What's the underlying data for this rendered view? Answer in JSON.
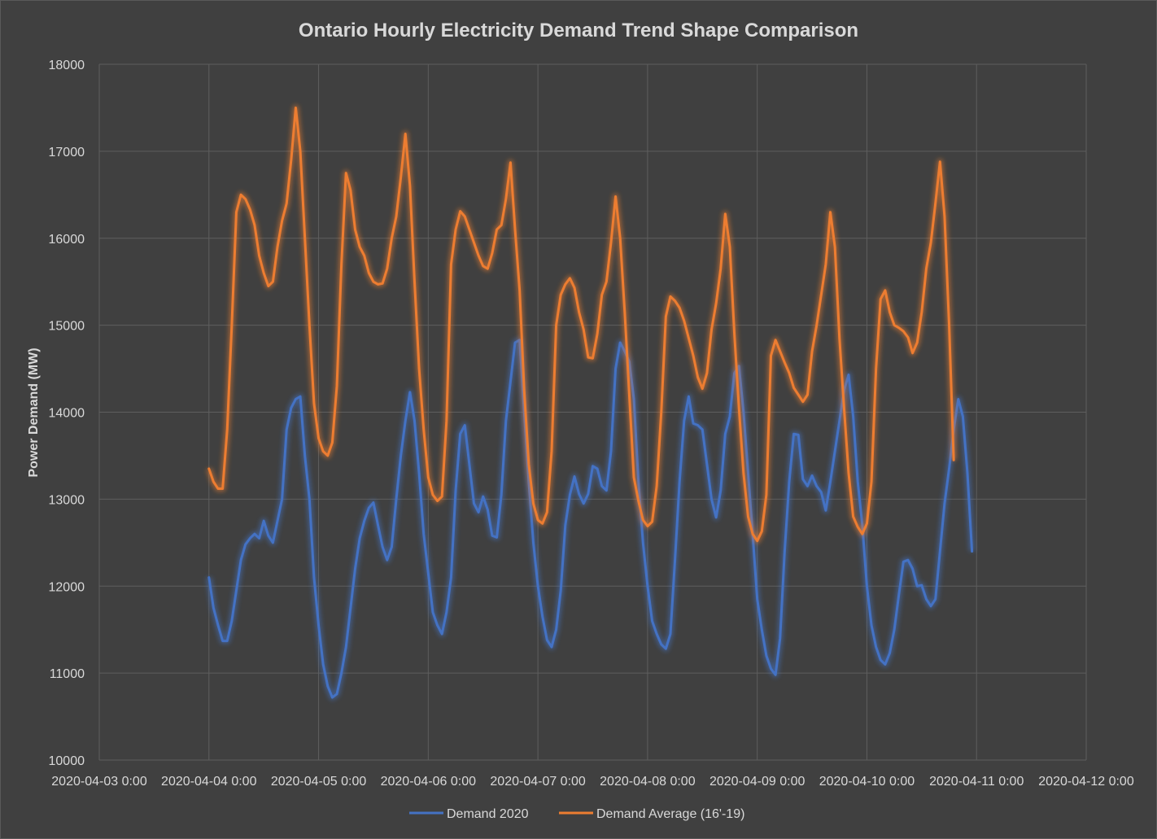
{
  "chart_data": {
    "type": "line",
    "title": "Ontario Hourly Electricity Demand Trend Shape Comparison",
    "xlabel": "",
    "ylabel": "Power Demand (MW)",
    "ylim": [
      10000,
      18000
    ],
    "yticks": [
      10000,
      11000,
      12000,
      13000,
      14000,
      15000,
      16000,
      17000,
      18000
    ],
    "xlim": [
      "2020-04-03 0:00",
      "2020-04-12 0:00"
    ],
    "xtick_labels": [
      "2020-04-03 0:00",
      "2020-04-04 0:00",
      "2020-04-05 0:00",
      "2020-04-06 0:00",
      "2020-04-07 0:00",
      "2020-04-08 0:00",
      "2020-04-09 0:00",
      "2020-04-10 0:00",
      "2020-04-11 0:00",
      "2020-04-12 0:00"
    ],
    "x_start": "2020-04-04 0:00",
    "x_interval": "1 hour",
    "grid": true,
    "legend_position": "bottom",
    "series": [
      {
        "name": "Demand 2020",
        "color": "#4472c4",
        "values": [
          12100,
          11750,
          11550,
          11370,
          11370,
          11600,
          11950,
          12300,
          12480,
          12550,
          12600,
          12550,
          12750,
          12580,
          12500,
          12750,
          13000,
          13800,
          14050,
          14150,
          14180,
          13500,
          13000,
          12100,
          11550,
          11100,
          10850,
          10720,
          10760,
          11000,
          11300,
          11750,
          12200,
          12550,
          12750,
          12900,
          12960,
          12700,
          12450,
          12300,
          12450,
          13000,
          13500,
          13900,
          14230,
          13900,
          13300,
          12600,
          12150,
          11700,
          11550,
          11450,
          11700,
          12100,
          13100,
          13750,
          13850,
          13400,
          12950,
          12850,
          13030,
          12880,
          12580,
          12560,
          13050,
          13900,
          14350,
          14800,
          14830,
          14000,
          13200,
          12500,
          12000,
          11650,
          11380,
          11300,
          11500,
          11950,
          12700,
          13050,
          13260,
          13060,
          12950,
          13060,
          13380,
          13350,
          13150,
          13100,
          13550,
          14500,
          14800,
          14700,
          14580,
          14150,
          13200,
          12500,
          12000,
          11600,
          11450,
          11330,
          11280,
          11450,
          12300,
          13200,
          13900,
          14180,
          13870,
          13850,
          13800,
          13400,
          13000,
          12790,
          13100,
          13750,
          13950,
          14450,
          14530,
          14000,
          13300,
          12600,
          11850,
          11500,
          11200,
          11050,
          10980,
          11400,
          12400,
          13200,
          13750,
          13740,
          13230,
          13150,
          13270,
          13150,
          13080,
          12870,
          13200,
          13550,
          13900,
          14250,
          14430,
          13950,
          13200,
          12700,
          12000,
          11550,
          11300,
          11150,
          11100,
          11230,
          11500,
          11900,
          12280,
          12300,
          12200,
          12000,
          12010,
          11850,
          11770,
          11850,
          12400,
          12950,
          13350,
          13800,
          14150,
          13950,
          13300,
          12400
        ]
      },
      {
        "name": "Demand Average (16'-19)",
        "color": "#ed7d31",
        "values": [
          13350,
          13200,
          13120,
          13120,
          13800,
          15000,
          16300,
          16500,
          16450,
          16330,
          16150,
          15800,
          15600,
          15450,
          15500,
          15900,
          16200,
          16400,
          16900,
          17500,
          17000,
          16000,
          15000,
          14100,
          13700,
          13550,
          13500,
          13650,
          14300,
          15700,
          16750,
          16550,
          16100,
          15900,
          15800,
          15600,
          15500,
          15470,
          15480,
          15650,
          16000,
          16250,
          16700,
          17200,
          16600,
          15500,
          14500,
          13800,
          13250,
          13050,
          12980,
          13030,
          13900,
          15700,
          16100,
          16310,
          16250,
          16100,
          15950,
          15800,
          15680,
          15650,
          15830,
          16100,
          16150,
          16450,
          16870,
          16100,
          15400,
          14250,
          13400,
          12950,
          12760,
          12720,
          12850,
          13550,
          15000,
          15350,
          15470,
          15540,
          15430,
          15150,
          14950,
          14630,
          14620,
          14900,
          15350,
          15500,
          15950,
          16480,
          16000,
          15150,
          14200,
          13250,
          12980,
          12760,
          12690,
          12740,
          13150,
          14000,
          15100,
          15330,
          15280,
          15200,
          15050,
          14850,
          14650,
          14400,
          14270,
          14450,
          14950,
          15250,
          15650,
          16280,
          15900,
          14900,
          14050,
          13300,
          12800,
          12600,
          12520,
          12630,
          13050,
          14650,
          14830,
          14700,
          14570,
          14450,
          14280,
          14200,
          14120,
          14200,
          14700,
          15000,
          15350,
          15700,
          16300,
          15900,
          14850,
          14050,
          13300,
          12800,
          12680,
          12600,
          12720,
          13200,
          14500,
          15300,
          15400,
          15150,
          15000,
          14970,
          14930,
          14860,
          14680,
          14800,
          15150,
          15650,
          15950,
          16400,
          16880,
          16250,
          15000,
          13450
        ]
      }
    ]
  }
}
